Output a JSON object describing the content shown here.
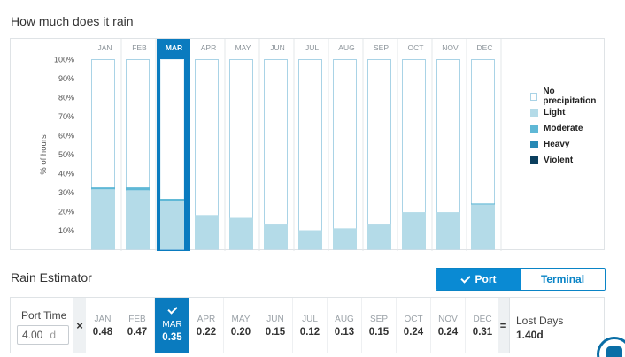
{
  "title": "How much does it rain",
  "chart_data": {
    "type": "bar",
    "stacked": true,
    "categories": [
      "JAN",
      "FEB",
      "MAR",
      "APR",
      "MAY",
      "JUN",
      "JUL",
      "AUG",
      "SEP",
      "OCT",
      "NOV",
      "DEC"
    ],
    "selected_category": "MAR",
    "ylabel": "% of hours",
    "ylim": [
      0,
      100
    ],
    "yticks": [
      "10%",
      "20%",
      "30%",
      "40%",
      "50%",
      "60%",
      "70%",
      "80%",
      "90%",
      "100%"
    ],
    "series": [
      {
        "name": "Light",
        "color": "#b4dbe8",
        "values": [
          31.5,
          31,
          25.5,
          18,
          16.5,
          13,
          10,
          11,
          13,
          19.5,
          19.5,
          23.5
        ]
      },
      {
        "name": "Moderate",
        "color": "#5fb8d6",
        "values": [
          1,
          1.5,
          1,
          0,
          0,
          0,
          0,
          0,
          0,
          0,
          0,
          0.5
        ]
      },
      {
        "name": "Heavy",
        "color": "#2789b5",
        "values": [
          0,
          0,
          0,
          0,
          0,
          0,
          0,
          0,
          0,
          0,
          0,
          0
        ]
      },
      {
        "name": "Violent",
        "color": "#0b3f5e",
        "values": [
          0,
          0,
          0,
          0,
          0,
          0,
          0,
          0,
          0,
          0,
          0,
          0
        ]
      }
    ],
    "legend": [
      {
        "name": "No precipitation",
        "color": "#ffffff"
      },
      {
        "name": "Light",
        "color": "#b4dbe8"
      },
      {
        "name": "Moderate",
        "color": "#5fb8d6"
      },
      {
        "name": "Heavy",
        "color": "#2789b5"
      },
      {
        "name": "Violent",
        "color": "#0b3f5e"
      }
    ],
    "legend_position": "right"
  },
  "estimator": {
    "title": "Rain Estimator",
    "toggle": {
      "port_label": "Port",
      "terminal_label": "Terminal",
      "active": "Port"
    },
    "port_time_label": "Port Time",
    "port_time_value": "4.00",
    "port_time_unit": "d",
    "multiply": "×",
    "equals": "=",
    "months": [
      {
        "name": "JAN",
        "value": "0.48"
      },
      {
        "name": "FEB",
        "value": "0.47"
      },
      {
        "name": "MAR",
        "value": "0.35"
      },
      {
        "name": "APR",
        "value": "0.22"
      },
      {
        "name": "MAY",
        "value": "0.20"
      },
      {
        "name": "JUN",
        "value": "0.15"
      },
      {
        "name": "JUL",
        "value": "0.12"
      },
      {
        "name": "AUG",
        "value": "0.13"
      },
      {
        "name": "SEP",
        "value": "0.15"
      },
      {
        "name": "OCT",
        "value": "0.24"
      },
      {
        "name": "NOV",
        "value": "0.24"
      },
      {
        "name": "DEC",
        "value": "0.31"
      }
    ],
    "selected_month": "MAR",
    "lost_days_label": "Lost Days",
    "lost_days_value": "1.40d"
  },
  "colors": {
    "accent": "#0a8ad3",
    "selected": "#0a7bbf",
    "bar_border": "#a9d3e6"
  },
  "chat_icon": "chat-bubble-icon"
}
